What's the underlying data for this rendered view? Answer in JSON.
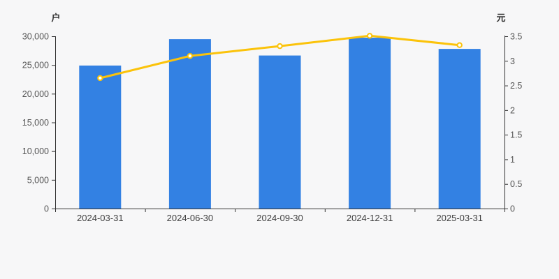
{
  "chart": {
    "left_axis_name": "户",
    "right_axis_name": "元",
    "colors": {
      "bar": "#3381e3",
      "line": "#fbc30b",
      "marker_fill": "#ffffff",
      "background": "#f7f7f8",
      "axis_line": "#333333",
      "tick_label": "#555555",
      "x_label": "#3f3f3f"
    }
  },
  "chart_data": {
    "type": "combo",
    "title": "",
    "legend_visible": false,
    "grid_lines": false,
    "categories": [
      "2024-03-31",
      "2024-06-30",
      "2024-09-30",
      "2024-12-31",
      "2025-03-31"
    ],
    "series": [
      {
        "name": "households-bars",
        "type": "bar",
        "axis": "left",
        "unit": "户",
        "values": [
          24900,
          29500,
          26650,
          29750,
          27800
        ]
      },
      {
        "name": "price-line",
        "type": "line",
        "axis": "right",
        "unit": "元",
        "values": [
          2.65,
          3.1,
          3.3,
          3.51,
          3.32
        ]
      }
    ],
    "left_axis": {
      "label": "户",
      "min": 0,
      "max": 30000,
      "tick_step": 5000,
      "tick_labels": [
        "0",
        "5,000",
        "10,000",
        "15,000",
        "20,000",
        "25,000",
        "30,000"
      ]
    },
    "right_axis": {
      "label": "元",
      "min": 0,
      "max": 3.5,
      "tick_step": 0.5,
      "tick_labels": [
        "0",
        "0.5",
        "1",
        "1.5",
        "2",
        "2.5",
        "3",
        "3.5"
      ]
    }
  }
}
